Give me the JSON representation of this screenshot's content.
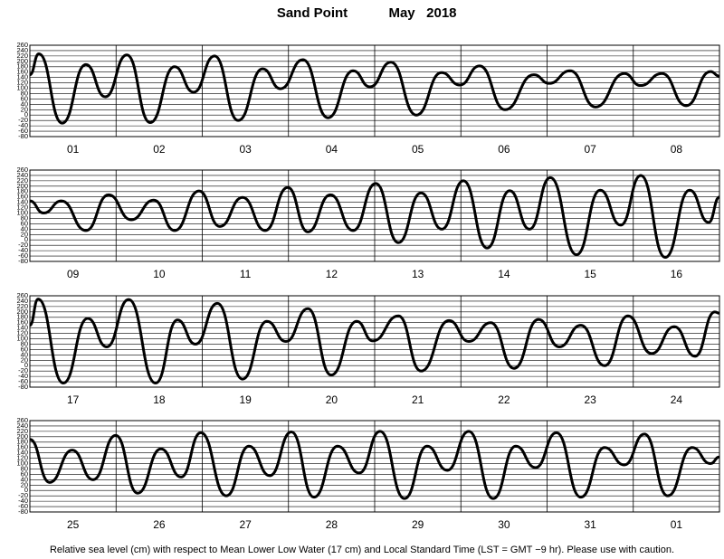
{
  "header": {
    "station": "Sand Point",
    "period": "May   2018"
  },
  "footer": "Relative sea level (cm) with respect to Mean Lower Low Water (17 cm) and Local Standard Time (LST = GMT −9 hr). Please use with caution.",
  "chart_data": [
    {
      "type": "line",
      "categories": [
        "01",
        "02",
        "03",
        "04",
        "05",
        "06",
        "07",
        "08"
      ],
      "color": "#000000",
      "grid": true,
      "xlim": [
        0,
        192
      ],
      "xticks": [
        0,
        24,
        48,
        72,
        96,
        120,
        144,
        168,
        192
      ],
      "ylim": [
        -80,
        260
      ],
      "yticks": [
        -80,
        -60,
        -40,
        -20,
        0,
        20,
        40,
        60,
        80,
        100,
        120,
        140,
        160,
        180,
        200,
        220,
        240,
        260
      ],
      "x": [
        0,
        2.5,
        9,
        15.6,
        21,
        27,
        33.5,
        40.3,
        45.6,
        51.4,
        58,
        64.8,
        69.8,
        76,
        83,
        90,
        94.7,
        100.5,
        107.6,
        114.6,
        119.7,
        125.2,
        132.3,
        140.3,
        144.6,
        150.4,
        157.5,
        165.5,
        170,
        176,
        182.7,
        189.5,
        192
      ],
      "values": [
        150,
        228,
        -30,
        188,
        68,
        224,
        -28,
        180,
        85,
        220,
        -20,
        172,
        98,
        206,
        -10,
        165,
        105,
        197,
        0,
        158,
        112,
        183,
        20,
        150,
        118,
        165,
        30,
        155,
        110,
        155,
        35,
        162,
        145
      ]
    },
    {
      "type": "line",
      "categories": [
        "09",
        "10",
        "11",
        "12",
        "13",
        "14",
        "15",
        "16"
      ],
      "color": "#000000",
      "grid": true,
      "xlim": [
        0,
        192
      ],
      "xticks": [
        0,
        24,
        48,
        72,
        96,
        120,
        144,
        168,
        192
      ],
      "ylim": [
        -80,
        260
      ],
      "yticks": [
        -80,
        -60,
        -40,
        -20,
        0,
        20,
        40,
        60,
        80,
        100,
        120,
        140,
        160,
        180,
        200,
        220,
        240,
        260
      ],
      "x": [
        0,
        3.8,
        8.8,
        15.6,
        21.9,
        28.2,
        34.5,
        40.3,
        47.1,
        52.9,
        59.2,
        65.5,
        71.8,
        77.4,
        83.7,
        90,
        96.3,
        102.6,
        108.9,
        114.7,
        120.7,
        127.3,
        133.6,
        139.1,
        144.9,
        152.2,
        158.8,
        164.5,
        170.1,
        176.9,
        183.7,
        189,
        192
      ],
      "values": [
        145,
        100,
        145,
        35,
        168,
        75,
        148,
        35,
        182,
        50,
        158,
        35,
        195,
        30,
        168,
        35,
        210,
        -10,
        175,
        40,
        220,
        -30,
        183,
        40,
        232,
        -55,
        185,
        55,
        240,
        -65,
        185,
        65,
        160
      ]
    },
    {
      "type": "line",
      "categories": [
        "17",
        "18",
        "19",
        "20",
        "21",
        "22",
        "23",
        "24"
      ],
      "color": "#000000",
      "grid": true,
      "xlim": [
        0,
        192
      ],
      "xticks": [
        0,
        24,
        48,
        72,
        96,
        120,
        144,
        168,
        192
      ],
      "ylim": [
        -80,
        260
      ],
      "yticks": [
        -80,
        -60,
        -40,
        -20,
        0,
        20,
        40,
        60,
        80,
        100,
        120,
        140,
        160,
        180,
        200,
        220,
        240,
        260
      ],
      "x": [
        0,
        2.3,
        9.3,
        16.1,
        21.4,
        27.5,
        35,
        41.1,
        46.1,
        52.2,
        59.2,
        66,
        71.3,
        77.4,
        83.9,
        91,
        95.5,
        102.6,
        108.9,
        116.7,
        122.2,
        128.3,
        134.8,
        141.6,
        147.4,
        153.4,
        160,
        166.5,
        173.1,
        179.4,
        185.2,
        190.7,
        192
      ],
      "values": [
        150,
        248,
        -65,
        176,
        70,
        246,
        -65,
        170,
        80,
        232,
        -50,
        165,
        90,
        212,
        -35,
        165,
        92,
        185,
        -20,
        168,
        90,
        160,
        -10,
        172,
        70,
        150,
        0,
        185,
        45,
        145,
        35,
        200,
        195
      ]
    },
    {
      "type": "line",
      "categories": [
        "25",
        "26",
        "27",
        "28",
        "29",
        "30",
        "31",
        "01"
      ],
      "color": "#000000",
      "grid": true,
      "xlim": [
        0,
        192
      ],
      "xticks": [
        0,
        24,
        48,
        72,
        96,
        120,
        144,
        168,
        192
      ],
      "ylim": [
        -80,
        260
      ],
      "yticks": [
        -80,
        -60,
        -40,
        -20,
        0,
        20,
        40,
        60,
        80,
        100,
        120,
        140,
        160,
        180,
        200,
        220,
        240,
        260
      ],
      "x": [
        0,
        5.5,
        11.8,
        17.6,
        23.9,
        30,
        36.5,
        42.1,
        47.6,
        54.7,
        61,
        66.8,
        72.8,
        79.1,
        85.7,
        91.7,
        97.5,
        104.3,
        110.6,
        116.2,
        122.2,
        129,
        135.3,
        140.8,
        146.6,
        153.4,
        160,
        165.5,
        171.1,
        177.6,
        184.4,
        189.5,
        192
      ],
      "values": [
        190,
        30,
        150,
        40,
        205,
        -10,
        155,
        50,
        215,
        -20,
        165,
        55,
        218,
        -25,
        165,
        65,
        220,
        -30,
        165,
        75,
        220,
        -30,
        165,
        85,
        215,
        -25,
        160,
        95,
        210,
        -20,
        160,
        100,
        125
      ]
    }
  ]
}
